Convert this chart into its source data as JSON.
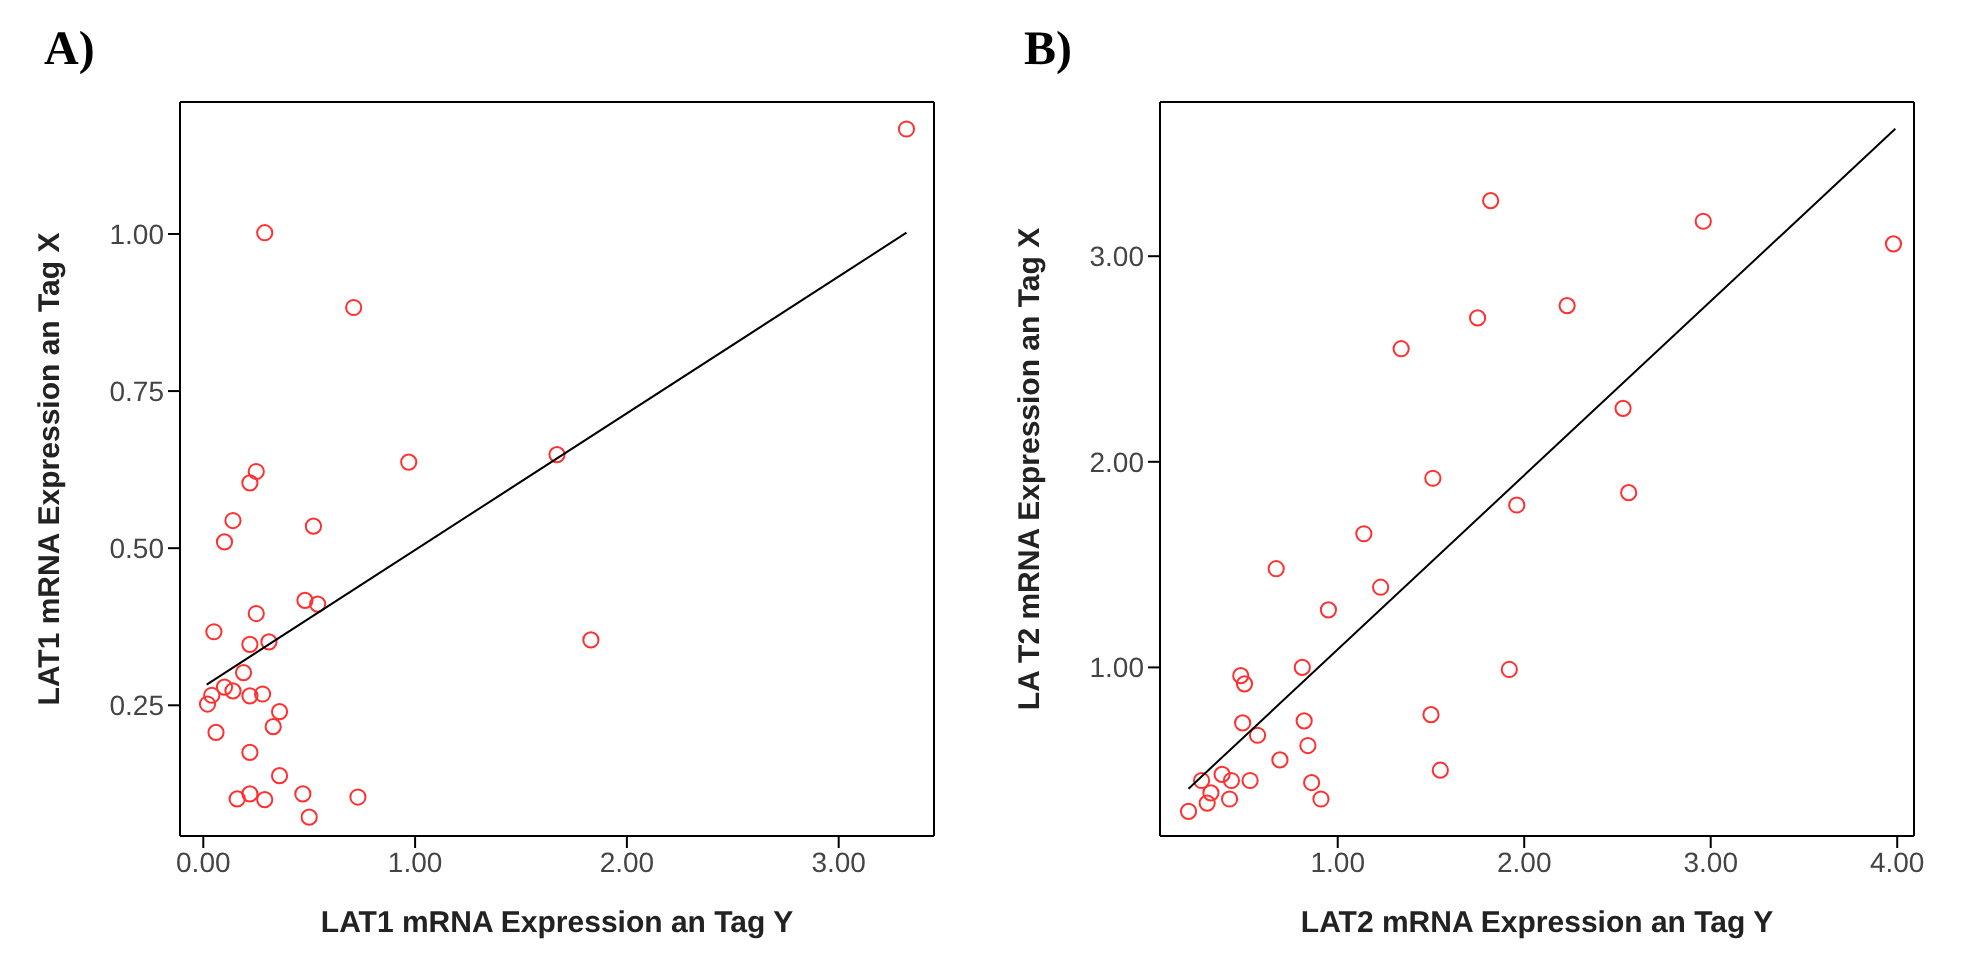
{
  "chart_data": [
    {
      "type": "scatter",
      "title": "A)",
      "xlabel": "LAT1 mRNA Expression an Tag Y",
      "ylabel": "LAT1 mRNA Expression an Tag X",
      "xlim": [
        -0.11,
        3.45
      ],
      "ylim": [
        0.042,
        1.21
      ],
      "xticks": [
        {
          "value": 0,
          "label": "0.00"
        },
        {
          "value": 1,
          "label": "1.00"
        },
        {
          "value": 2,
          "label": "2.00"
        },
        {
          "value": 3,
          "label": "3.00"
        }
      ],
      "yticks": [
        {
          "value": 0.25,
          "label": "0.25"
        },
        {
          "value": 0.5,
          "label": "0.50"
        },
        {
          "value": 0.75,
          "label": "0.75"
        },
        {
          "value": 1,
          "label": "1.00"
        }
      ],
      "series": [
        {
          "type": "scatter",
          "color": "#ff3030",
          "marker": "circle",
          "x": [
            3.32,
            0.29,
            0.71,
            0.97,
            1.67,
            0.25,
            0.22,
            0.14,
            0.52,
            0.1,
            0.48,
            0.54,
            0.25,
            0.05,
            0.22,
            0.31,
            1.83,
            0.19,
            0.1,
            0.14,
            0.04,
            0.22,
            0.28,
            0.02,
            0.36,
            0.33,
            0.06,
            0.22,
            0.36,
            0.16,
            0.22,
            0.29,
            0.47,
            0.73,
            0.5
          ],
          "values": [
            1.167,
            1.002,
            0.883,
            0.637,
            0.649,
            0.622,
            0.604,
            0.544,
            0.535,
            0.51,
            0.417,
            0.411,
            0.396,
            0.367,
            0.347,
            0.351,
            0.354,
            0.302,
            0.279,
            0.273,
            0.266,
            0.265,
            0.268,
            0.252,
            0.24,
            0.216,
            0.207,
            0.175,
            0.138,
            0.101,
            0.109,
            0.1,
            0.109,
            0.104,
            0.072
          ]
        },
        {
          "type": "line",
          "color": "#000000",
          "marker": "none",
          "x": [
            0.016,
            3.32
          ],
          "values": [
            0.283,
            1.002
          ]
        }
      ]
    },
    {
      "type": "scatter",
      "title": "B)",
      "xlabel": "LAT2 mRNA Expression an Tag Y",
      "ylabel": "LA T2 mRNA Expression an Tag X",
      "xlim": [
        0.047,
        4.09
      ],
      "ylim": [
        0.18,
        3.75
      ],
      "xticks": [
        {
          "value": 1,
          "label": "1.00"
        },
        {
          "value": 2,
          "label": "2.00"
        },
        {
          "value": 3,
          "label": "3.00"
        },
        {
          "value": 4,
          "label": "4.00"
        }
      ],
      "yticks": [
        {
          "value": 1,
          "label": "1.00"
        },
        {
          "value": 2,
          "label": "2.00"
        },
        {
          "value": 3,
          "label": "3.00"
        }
      ],
      "series": [
        {
          "type": "scatter",
          "color": "#ff3030",
          "marker": "circle",
          "x": [
            1.82,
            2.96,
            3.98,
            2.23,
            1.75,
            1.34,
            2.53,
            1.51,
            2.56,
            1.96,
            1.14,
            0.67,
            1.23,
            0.95,
            0.81,
            1.92,
            0.48,
            0.5,
            0.49,
            0.82,
            1.5,
            0.57,
            0.84,
            0.69,
            1.55,
            0.27,
            0.38,
            0.43,
            0.53,
            0.86,
            0.32,
            0.3,
            0.42,
            0.91,
            0.2
          ],
          "values": [
            3.27,
            3.17,
            3.06,
            2.76,
            2.7,
            2.55,
            2.26,
            1.92,
            1.85,
            1.79,
            1.65,
            1.48,
            1.39,
            1.28,
            1.0,
            0.99,
            0.96,
            0.92,
            0.73,
            0.74,
            0.77,
            0.67,
            0.62,
            0.55,
            0.5,
            0.45,
            0.48,
            0.45,
            0.45,
            0.44,
            0.39,
            0.34,
            0.36,
            0.36,
            0.3
          ]
        },
        {
          "type": "line",
          "color": "#000000",
          "marker": "none",
          "x": [
            0.2,
            3.99
          ],
          "values": [
            0.41,
            3.62
          ]
        }
      ]
    }
  ]
}
